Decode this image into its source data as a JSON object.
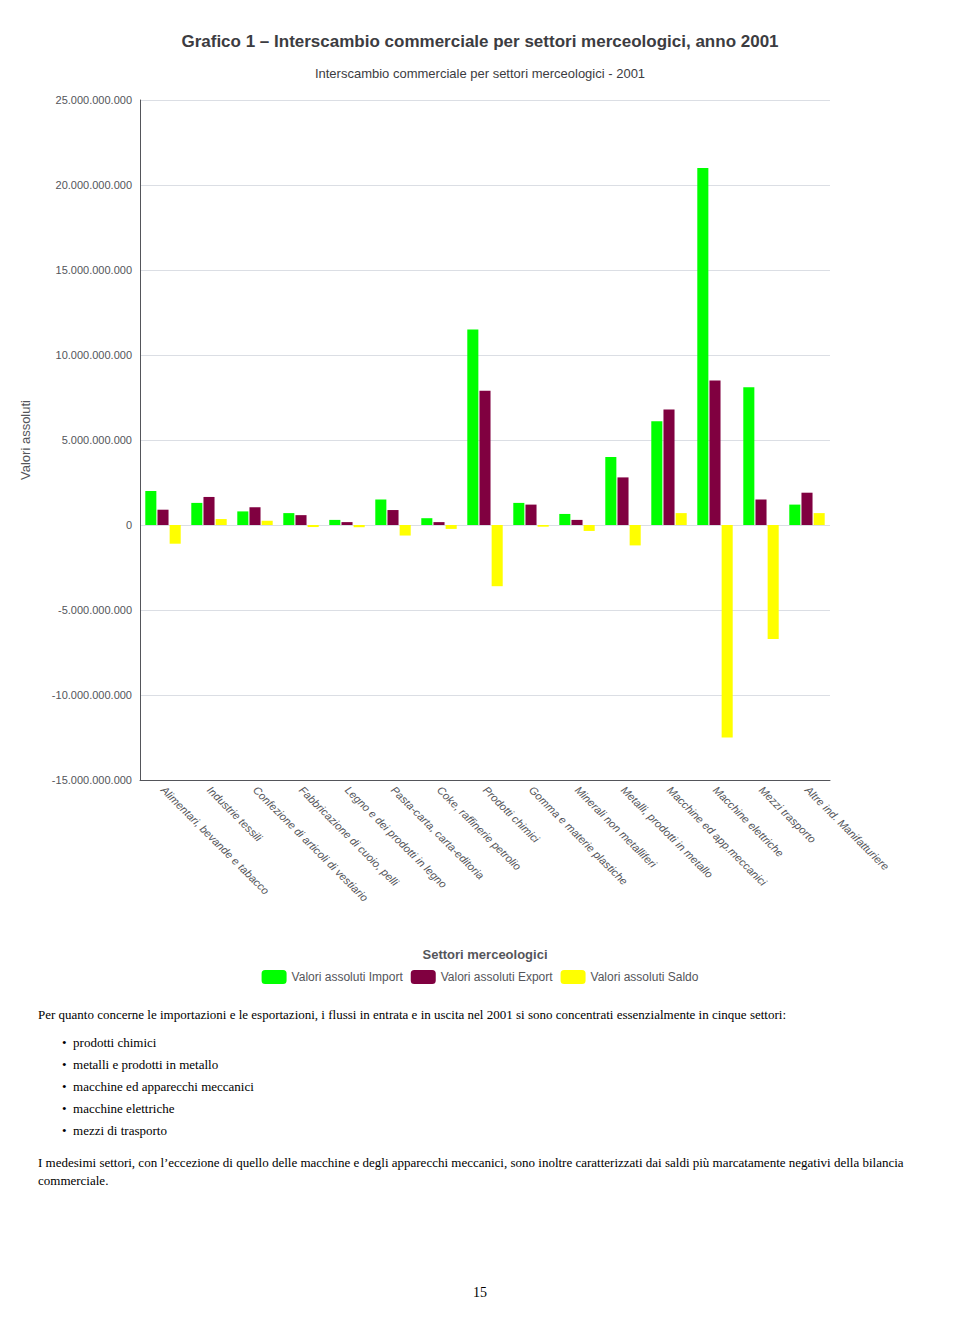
{
  "chart_data": {
    "type": "bar",
    "title": "Grafico 1 – Interscambio commerciale per settori merceologici, anno 2001",
    "subtitle": "Interscambio commerciale per settori merceologici - 2001",
    "xlabel": "Settori merceologici",
    "ylabel": "Valori assoluti",
    "categories": [
      "Alimentari, bevande e tabacco",
      "Industrie tessili",
      "Confezione di articoli di vestiario",
      "Fabbricazione di cuoio, pelli",
      "Legno e dei prodotti in legno",
      "Pasta-carta, carta-editoria",
      "Coke, raffinerie petrolio",
      "Prodotti chimici",
      "Gomma e materie plastiche",
      "Minerali non metalliferi",
      "Metalli, prodotti in metallo",
      "Macchine ed app.meccanici",
      "Macchine elettriche",
      "Mezzi trasporto",
      "Altre ind. Manifatturiere"
    ],
    "series": [
      {
        "name": "Valori assoluti Import",
        "color": "#00FF00",
        "values": [
          2000000000,
          1300000000,
          800000000,
          700000000,
          300000000,
          1500000000,
          400000000,
          11500000000,
          1300000000,
          650000000,
          4000000000,
          6100000000,
          21000000000,
          8100000000,
          1200000000
        ]
      },
      {
        "name": "Valori assoluti Export",
        "color": "#800040",
        "values": [
          900000000,
          1650000000,
          1050000000,
          580000000,
          170000000,
          880000000,
          170000000,
          7900000000,
          1200000000,
          300000000,
          2800000000,
          6800000000,
          8500000000,
          1500000000,
          1900000000
        ]
      },
      {
        "name": "Valori assoluti Saldo",
        "color": "#FFFF00",
        "values": [
          -1100000000,
          350000000,
          250000000,
          -120000000,
          -130000000,
          -620000000,
          -230000000,
          -3600000000,
          -100000000,
          -350000000,
          -1200000000,
          700000000,
          -12500000000,
          -6700000000,
          700000000
        ]
      }
    ],
    "ylim": [
      -15000000000,
      25000000000
    ],
    "yticks": [
      {
        "value": -15000000000,
        "label": "-15.000.000.000"
      },
      {
        "value": -10000000000,
        "label": "-10.000.000.000"
      },
      {
        "value": -5000000000,
        "label": "-5.000.000.000"
      },
      0,
      {
        "value": 5000000000,
        "label": "5.000.000.000"
      },
      {
        "value": 10000000000,
        "label": "10.000.000.000"
      },
      {
        "value": 15000000000,
        "label": "15.000.000.000"
      },
      {
        "value": 20000000000,
        "label": "20.000.000.000"
      },
      {
        "value": 25000000000,
        "label": "25.000.000.000"
      }
    ],
    "grid": true,
    "legend": "bottom",
    "annotations": [
      "Per quanto concerne le importazioni e le esportazioni, i flussi in entrata e in uscita nel 2001 si sono concentrati essenzialmente in cinque settori:",
      "•  prodotti chimici",
      "•  metalli e prodotti in metallo",
      "•  macchine ed apparecchi meccanici",
      "•  macchine elettriche",
      "•  mezzi di trasporto",
      "I medesimi settori, con l’eccezione di quello delle macchine e degli apparecchi meccanici, sono inoltre caratterizzati dai saldi più marcatamente negativi della bilancia commerciale.",
      "15"
    ]
  }
}
